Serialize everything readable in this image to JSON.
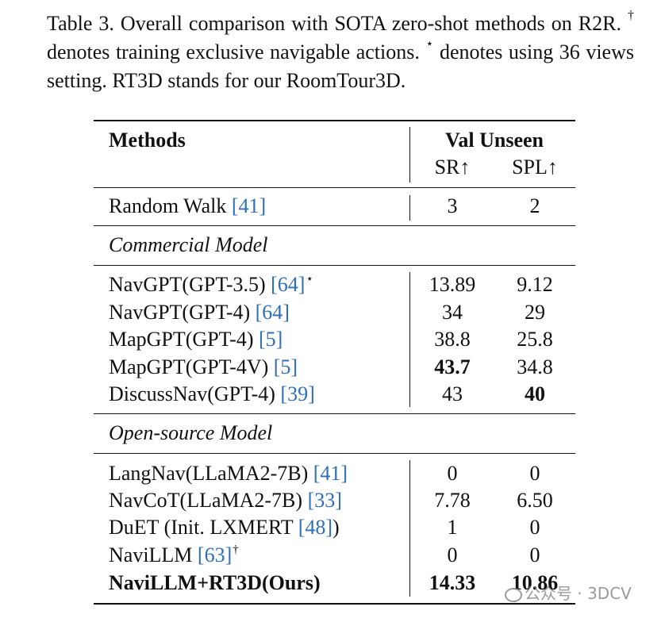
{
  "caption": {
    "part1": "Table 3.  Overall comparison with SOTA zero-shot methods on R2R. ",
    "dagger": "†",
    "part2": " denotes training exclusive navigable actions. ",
    "star": "⋆",
    "part3": " denotes using 36 views setting. RT3D stands for our RoomTour3D."
  },
  "header": {
    "methods": "Methods",
    "group": "Val Unseen",
    "sr": "SR↑",
    "spl": "SPL↑"
  },
  "baseline": {
    "name": "Random Walk ",
    "cite": "[41]",
    "sr": "3",
    "spl": "2"
  },
  "sections": {
    "commercial": "Commercial Model",
    "open_source": "Open-source Model"
  },
  "commercial_rows": [
    {
      "name": "NavGPT(GPT-3.5) ",
      "cite": "[64]",
      "mark": "⋆",
      "sr": "13.89",
      "spl": "9.12"
    },
    {
      "name": "NavGPT(GPT-4) ",
      "cite": "[64]",
      "sr": "34",
      "spl": "29"
    },
    {
      "name": "MapGPT(GPT-4) ",
      "cite": "[5]",
      "sr": "38.8",
      "spl": "25.8"
    },
    {
      "name": "MapGPT(GPT-4V) ",
      "cite": "[5]",
      "sr": "43.7",
      "spl": "34.8"
    },
    {
      "name": "DiscussNav(GPT-4) ",
      "cite": "[39]",
      "sr": "43",
      "spl": "40"
    }
  ],
  "open_rows": [
    {
      "name": "LangNav(LLaMA2-7B) ",
      "cite": "[41]",
      "sr": "0",
      "spl": "0"
    },
    {
      "name": "NavCoT(LLaMA2-7B) ",
      "cite": "[33]",
      "sr": "7.78",
      "spl": "6.50"
    },
    {
      "name": "DuET (Init. LXMERT ",
      "cite": "[48]",
      "tail": ")",
      "sr": "1",
      "spl": "0"
    },
    {
      "name": "NaviLLM ",
      "cite": "[63]",
      "mark": "†",
      "sr": "0",
      "spl": "0"
    },
    {
      "name": "NaviLLM+RT3D(Ours)",
      "sr": "14.33",
      "spl": "10.86"
    }
  ],
  "watermark": "公众号 · 3DCV"
}
